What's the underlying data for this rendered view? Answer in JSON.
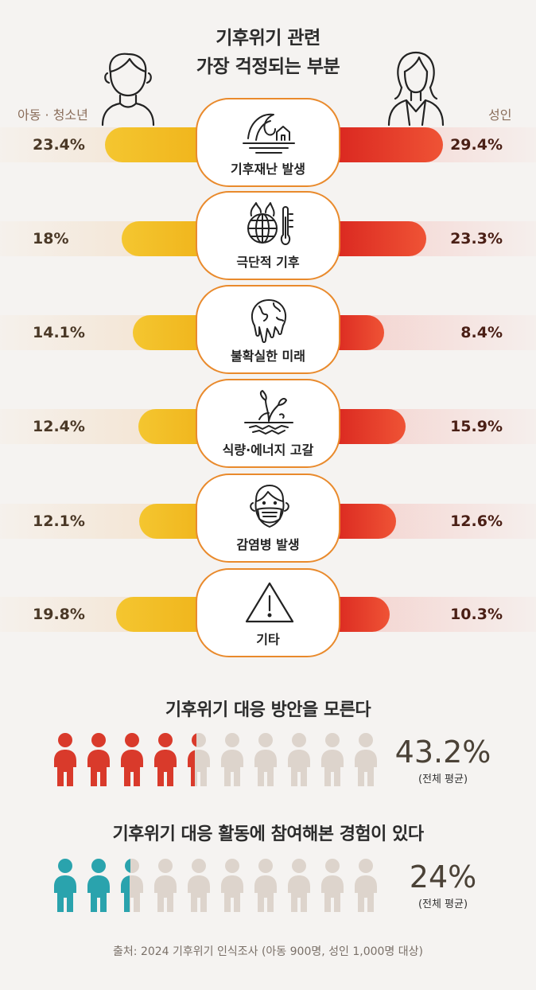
{
  "title_line1": "기후위기 관련",
  "title_line2": "가장 걱정되는 부분",
  "group_left": "아동 · 청소년",
  "group_right": "성인",
  "colors": {
    "youth": "#f2bd23",
    "adult": "#e2301f",
    "border": "#e98a2c"
  },
  "categories": [
    {
      "label": "기후재난 발생",
      "icon": "wave-house-icon",
      "youth": "23.4%",
      "adult": "29.4%"
    },
    {
      "label": "극단적 기후",
      "icon": "globe-fire-thermometer-icon",
      "youth": "18%",
      "adult": "23.3%"
    },
    {
      "label": "불확실한 미래",
      "icon": "melting-globe-icon",
      "youth": "14.1%",
      "adult": "8.4%"
    },
    {
      "label": "식량·에너지 고갈",
      "icon": "withered-plant-icon",
      "youth": "12.4%",
      "adult": "15.9%"
    },
    {
      "label": "감염병 발생",
      "icon": "masked-face-icon",
      "youth": "12.1%",
      "adult": "12.6%"
    },
    {
      "label": "기타",
      "icon": "warning-triangle-icon",
      "youth": "19.8%",
      "adult": "10.3%"
    }
  ],
  "stat1": {
    "title": "기후위기 대응 방안을 모른다",
    "value": "43.2%",
    "note": "(전체 평균)",
    "fraction": 0.432,
    "color": "#d93a2b"
  },
  "stat2": {
    "title": "기후위기 대응 활동에 참여해본 경험이 있다",
    "value": "24%",
    "note": "(전체 평균)",
    "fraction": 0.24,
    "color": "#2aa3ad"
  },
  "source": "출처: 2024 기후위기 인식조사 (아동 900명, 성인 1,000명 대상)",
  "chart_data": {
    "type": "bar",
    "title": "기후위기 관련 가장 걱정되는 부분",
    "categories": [
      "기후재난 발생",
      "극단적 기후",
      "불확실한 미래",
      "식량·에너지 고갈",
      "감염병 발생",
      "기타"
    ],
    "series": [
      {
        "name": "아동 · 청소년",
        "values": [
          23.4,
          18,
          14.1,
          12.4,
          12.1,
          19.8
        ]
      },
      {
        "name": "성인",
        "values": [
          29.4,
          23.3,
          8.4,
          15.9,
          12.6,
          10.3
        ]
      }
    ],
    "xlabel": "",
    "ylabel": ""
  }
}
